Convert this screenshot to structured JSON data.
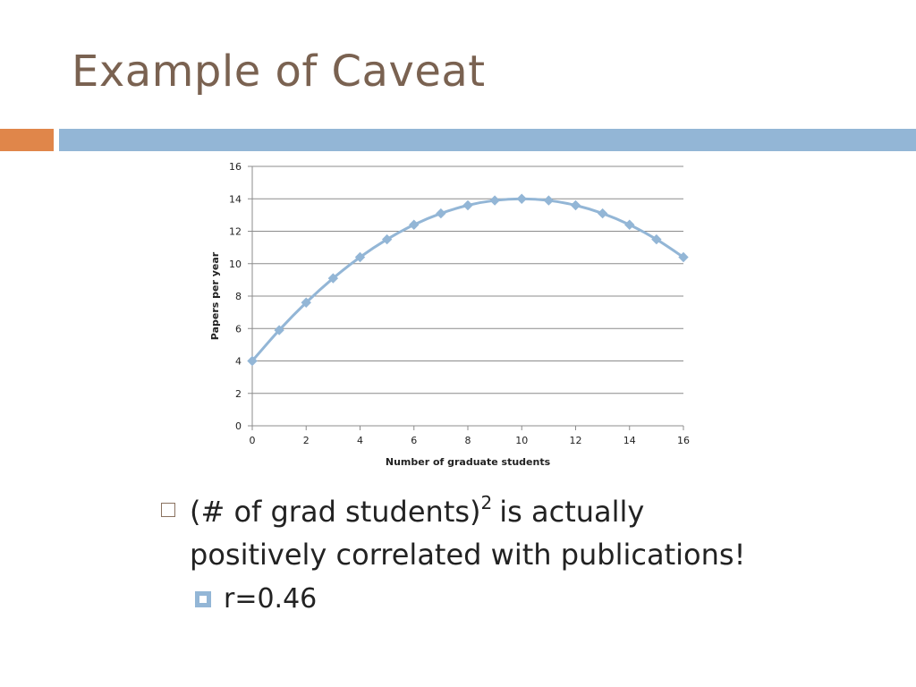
{
  "slide": {
    "title": "Example of Caveat",
    "accent_colors": {
      "orange": "#e0864a",
      "blue": "#93b6d6",
      "title": "#7a6251"
    }
  },
  "bullets": {
    "main_part1": "(# of grad students)",
    "main_sup": "2",
    "main_part2": "is actually positively correlated with publications!",
    "sub": "r=0.46"
  },
  "chart_data": {
    "type": "line",
    "xlabel": "Number of graduate students",
    "ylabel": "Papers per year",
    "xlim": [
      0,
      16
    ],
    "ylim": [
      0,
      16
    ],
    "x_ticks": [
      0,
      2,
      4,
      6,
      8,
      10,
      12,
      14,
      16
    ],
    "y_ticks": [
      0,
      2,
      4,
      6,
      8,
      10,
      12,
      14,
      16
    ],
    "grid": "horizontal",
    "series": [
      {
        "color": "#93b6d6",
        "marker": "diamond",
        "x": [
          0,
          1,
          2,
          3,
          4,
          5,
          6,
          7,
          8,
          9,
          10,
          11,
          12,
          13,
          14,
          15,
          16
        ],
        "y": [
          4,
          5.9,
          7.6,
          9.1,
          10.4,
          11.5,
          12.4,
          13.1,
          13.6,
          13.9,
          14,
          13.9,
          13.6,
          13.1,
          12.4,
          11.5,
          10.4
        ]
      }
    ]
  }
}
